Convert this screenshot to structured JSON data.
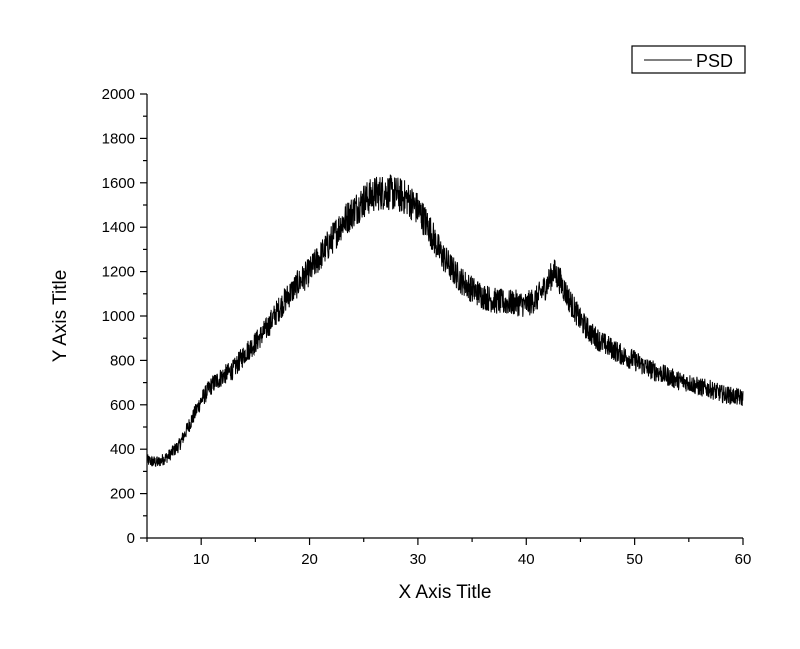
{
  "chart_data": {
    "type": "line",
    "xlabel": "X Axis Title",
    "ylabel": "Y Axis Title",
    "xlim": [
      5,
      60
    ],
    "ylim": [
      0,
      2000
    ],
    "x_ticks": [
      10,
      20,
      30,
      40,
      50,
      60
    ],
    "y_ticks": [
      0,
      200,
      400,
      600,
      800,
      1000,
      1200,
      1400,
      1600,
      1800,
      2000
    ],
    "grid": false,
    "legend": {
      "position": "top-right",
      "entries": [
        "PSD"
      ]
    },
    "series": [
      {
        "name": "PSD",
        "color": "#000000",
        "x": [
          5,
          6,
          7,
          8,
          9,
          10,
          11,
          12,
          13,
          14,
          15,
          16,
          17,
          18,
          19,
          20,
          21,
          22,
          23,
          24,
          25,
          26,
          27,
          28,
          29,
          30,
          31,
          32,
          33,
          34,
          35,
          36,
          37,
          38,
          39,
          40,
          41,
          42,
          42.5,
          43,
          44,
          45,
          46,
          47,
          48,
          49,
          50,
          51,
          52,
          53,
          54,
          55,
          56,
          57,
          58,
          59,
          60
        ],
        "y": [
          350,
          340,
          370,
          420,
          520,
          620,
          690,
          730,
          760,
          830,
          880,
          940,
          1020,
          1090,
          1150,
          1200,
          1270,
          1340,
          1420,
          1470,
          1520,
          1550,
          1560,
          1550,
          1530,
          1480,
          1400,
          1290,
          1220,
          1160,
          1120,
          1090,
          1070,
          1060,
          1060,
          1050,
          1080,
          1150,
          1200,
          1170,
          1070,
          980,
          920,
          880,
          850,
          820,
          800,
          770,
          750,
          730,
          710,
          700,
          680,
          670,
          650,
          640,
          630
        ]
      }
    ]
  }
}
